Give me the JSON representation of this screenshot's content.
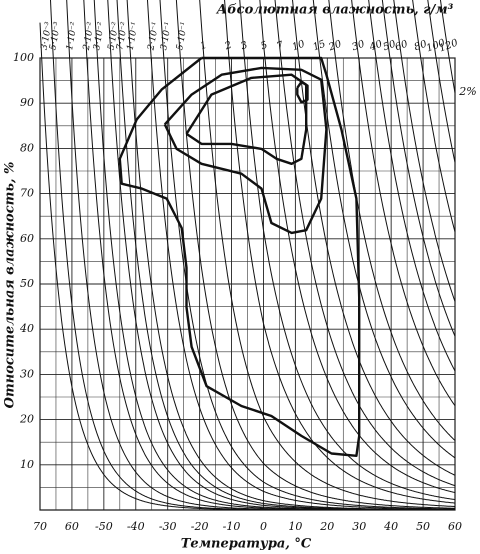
{
  "chart_data": {
    "type": "psychrometric",
    "title": "Абсолютная влажность, г/м³",
    "x_label": "Температура, °С",
    "y_label": "Относительная влажность, %",
    "annotation": "2%",
    "xlim": [
      -70,
      60
    ],
    "ylim": [
      0,
      100
    ],
    "xticks": [
      {
        "value": -70,
        "label": "70"
      },
      {
        "value": -60,
        "label": "60"
      },
      -50,
      -40,
      -30,
      -20,
      -10,
      0,
      10,
      20,
      30,
      40,
      50,
      60
    ],
    "yticks": [
      10,
      20,
      30,
      40,
      50,
      60,
      70,
      80,
      90,
      100
    ],
    "xgrid": [
      -65,
      -55,
      -45,
      -35,
      -25,
      -15,
      -5,
      5,
      15,
      25,
      35,
      45,
      55
    ],
    "ygrid": [
      5,
      15,
      25,
      35,
      45,
      55,
      65,
      75,
      85,
      95
    ],
    "grid": true,
    "absolute_humidity": {
      "color": "#111111",
      "values": [
        0.003,
        0.005,
        0.01,
        0.02,
        0.03,
        0.05,
        0.07,
        0.1,
        0.2,
        0.3,
        0.5,
        1,
        2,
        3,
        5,
        7,
        10,
        15,
        20,
        30,
        40,
        50,
        60,
        80,
        100,
        120
      ],
      "value_labels": [
        "3·10⁻³",
        "5·10⁻³",
        "1·10⁻²",
        "2·10⁻²",
        "3·10⁻²",
        "5·10⁻²",
        "7·10⁻²",
        "1·10⁻¹",
        "2·10⁻¹",
        "3·10⁻¹",
        "5·10⁻¹",
        "1",
        "2",
        "3",
        "5",
        "7",
        "10",
        "15",
        "20",
        "30",
        "40",
        "50",
        "60",
        "80",
        "100",
        "120"
      ]
    },
    "series": [
      {
        "color": "#111111",
        "x": [
          -19.4,
          18.1,
          19.7,
          24.4,
          29.1,
          30,
          30,
          29.1,
          21.3,
          11.9,
          2.5,
          -6.9,
          -17.8,
          -22.5,
          -24.1,
          -24.1,
          -25.6,
          -30.3,
          -38.1,
          -44.4,
          -45,
          -39.7,
          -31.9,
          -19.4
        ],
        "values": [
          100,
          100,
          96.3,
          84.2,
          68.9,
          47,
          16.4,
          12,
          12.5,
          16.4,
          20.8,
          23,
          27.4,
          36.1,
          44.9,
          53.6,
          62.4,
          68.9,
          71.1,
          72.2,
          77.7,
          86.4,
          93,
          100
        ]
      },
      {
        "color": "#111111",
        "x": [
          -30.9,
          -22.5,
          -13.1,
          -0.6,
          11.9,
          18.1,
          19.7,
          18.1,
          13.4,
          8.8,
          2.5,
          -0.6,
          -6.9,
          -19.4,
          -27.2,
          -30.9
        ],
        "values": [
          85.3,
          91.9,
          96.3,
          97.8,
          97.4,
          95.2,
          84.2,
          68.9,
          61.9,
          61.3,
          63.5,
          71.1,
          74.4,
          76.6,
          79.9,
          85.3
        ]
      },
      {
        "color": "#111111",
        "x": [
          -24.1,
          -16.3,
          -3.8,
          8.8,
          13.4,
          13.4,
          11.9,
          8.8,
          4.1,
          -0.6,
          -10,
          -19.4,
          -24.1
        ],
        "values": [
          83.2,
          91.9,
          95.6,
          96.3,
          94.1,
          84.2,
          77.7,
          76.6,
          77.7,
          79.9,
          81,
          81,
          83.2
        ]
      },
      {
        "color": "#111111",
        "x": [
          10.6,
          11.9,
          13.8,
          13.8,
          11.9,
          10.6,
          10.6
        ],
        "values": [
          93.4,
          94.7,
          93.9,
          90.8,
          90.2,
          91.9,
          93.4
        ]
      }
    ]
  }
}
